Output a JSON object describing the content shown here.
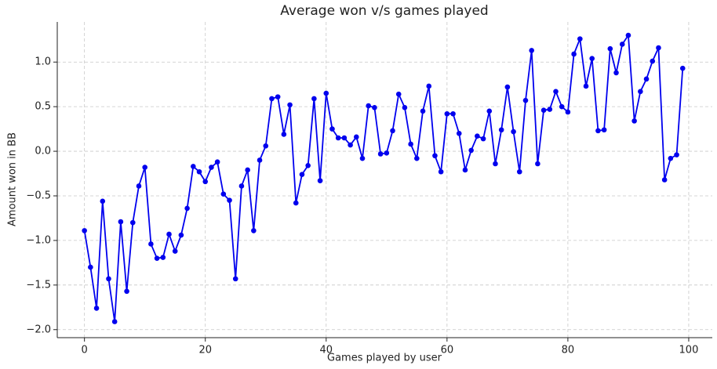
{
  "chart_data": {
    "type": "line",
    "title": "Average won v/s games played",
    "x_label": "Games played by user",
    "y_label": "Amount won in BB",
    "x": [
      0,
      1,
      2,
      3,
      4,
      5,
      6,
      7,
      8,
      9,
      10,
      11,
      12,
      13,
      14,
      15,
      16,
      17,
      18,
      19,
      20,
      21,
      22,
      23,
      24,
      25,
      26,
      27,
      28,
      29,
      30,
      31,
      32,
      33,
      34,
      35,
      36,
      37,
      38,
      39,
      40,
      41,
      42,
      43,
      44,
      45,
      46,
      47,
      48,
      49,
      50,
      51,
      52,
      53,
      54,
      55,
      56,
      57,
      58,
      59,
      60,
      61,
      62,
      63,
      64,
      65,
      66,
      67,
      68,
      69,
      70,
      71,
      72,
      73,
      74,
      75,
      76,
      77,
      78,
      79,
      80,
      81,
      82,
      83,
      84,
      85,
      86,
      87,
      88,
      89,
      90,
      91,
      92,
      93,
      94,
      95,
      96,
      97,
      98,
      99
    ],
    "series": [
      {
        "name": "Amount won in BB",
        "color": "#0000ee",
        "values": [
          -0.89,
          -1.3,
          -1.76,
          -0.56,
          -1.43,
          -1.91,
          -0.79,
          -1.57,
          -0.8,
          -0.39,
          -0.18,
          -1.04,
          -1.2,
          -1.19,
          -0.93,
          -1.12,
          -0.94,
          -0.64,
          -0.17,
          -0.23,
          -0.34,
          -0.18,
          -0.12,
          -0.48,
          -0.55,
          -1.43,
          -0.39,
          -0.21,
          -0.89,
          -0.1,
          0.06,
          0.59,
          0.61,
          0.19,
          0.52,
          -0.58,
          -0.26,
          -0.16,
          0.59,
          -0.33,
          0.65,
          0.25,
          0.15,
          0.15,
          0.07,
          0.16,
          -0.08,
          0.51,
          0.49,
          -0.03,
          -0.02,
          0.23,
          0.64,
          0.49,
          0.08,
          -0.08,
          0.45,
          0.73,
          -0.05,
          -0.23,
          0.42,
          0.42,
          0.2,
          -0.21,
          0.01,
          0.17,
          0.14,
          0.45,
          -0.14,
          0.24,
          0.72,
          0.22,
          -0.23,
          0.57,
          1.13,
          -0.14,
          0.46,
          0.47,
          0.67,
          0.5,
          0.44,
          1.09,
          1.26,
          0.73,
          1.04,
          0.23,
          0.24,
          1.15,
          0.88,
          1.2,
          1.3,
          0.34,
          0.67,
          0.81,
          1.01,
          1.16,
          -0.32,
          -0.08,
          -0.04,
          0.93
        ]
      }
    ],
    "xlim": [
      -4.5,
      103.9
    ],
    "ylim": [
      -2.09,
      1.45
    ],
    "xticks": [
      0,
      20,
      40,
      60,
      80,
      100
    ],
    "yticks": [
      {
        "value": -2.0,
        "label": "−2.0"
      },
      {
        "value": -1.5,
        "label": "−1.5"
      },
      {
        "value": -1.0,
        "label": "−1.0"
      },
      {
        "value": -0.5,
        "label": "−0.5"
      },
      {
        "value": 0.0,
        "label": "0.0"
      },
      {
        "value": 0.5,
        "label": "0.5"
      },
      {
        "value": 1.0,
        "label": "1.0"
      }
    ],
    "grid": true
  }
}
